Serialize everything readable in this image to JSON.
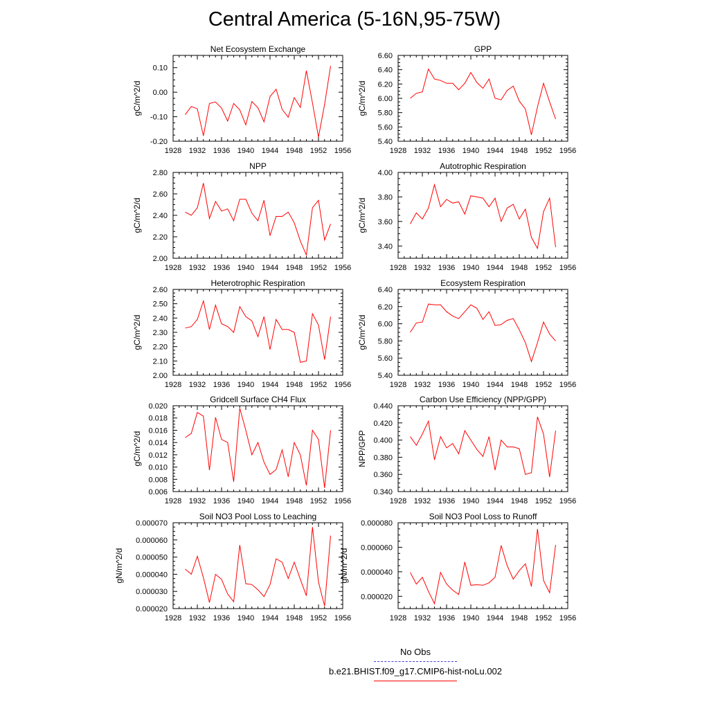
{
  "figure": {
    "title": "Central America (5-16N,95-75W)"
  },
  "legend": {
    "items": [
      {
        "label": "No Obs",
        "color": "#4040d0",
        "style": "dashed"
      },
      {
        "label": "b.e21.BHIST.f09_g17.CMIP6-hist-noLu.002",
        "color": "#ff0000",
        "style": "solid"
      }
    ]
  },
  "chart_data": [
    {
      "type": "line",
      "title": "Net Ecosystem Exchange",
      "ylabel": "gC/m^2/d",
      "xlim": [
        1928,
        1956
      ],
      "ylim": [
        -0.2,
        0.15
      ],
      "x_ticks": [
        "1928",
        "1932",
        "1936",
        "1940",
        "1944",
        "1948",
        "1952",
        "1956"
      ],
      "y_ticks": [
        "-0.20",
        "-0.10",
        "0.00",
        "0.10"
      ],
      "y_tick_values": [
        -0.2,
        -0.1,
        0.0,
        0.1
      ],
      "x": [
        1930,
        1931,
        1932,
        1933,
        1934,
        1935,
        1936,
        1937,
        1938,
        1939,
        1940,
        1941,
        1942,
        1943,
        1944,
        1945,
        1946,
        1947,
        1948,
        1949,
        1950,
        1951,
        1952,
        1953,
        1954
      ],
      "series": [
        {
          "values": [
            -0.092,
            -0.058,
            -0.068,
            -0.178,
            -0.046,
            -0.04,
            -0.065,
            -0.118,
            -0.046,
            -0.072,
            -0.133,
            -0.038,
            -0.063,
            -0.121,
            -0.018,
            0.012,
            -0.07,
            -0.102,
            -0.022,
            -0.062,
            0.088,
            -0.044,
            -0.183,
            -0.05,
            0.107
          ],
          "color": "#ff0000"
        }
      ]
    },
    {
      "type": "line",
      "title": "GPP",
      "ylabel": "gC/m^2/d",
      "xlim": [
        1928,
        1956
      ],
      "ylim": [
        5.4,
        6.6
      ],
      "x_ticks": [
        "1928",
        "1932",
        "1936",
        "1940",
        "1944",
        "1948",
        "1952",
        "1956"
      ],
      "y_ticks": [
        "5.40",
        "5.60",
        "5.80",
        "6.00",
        "6.20",
        "6.40",
        "6.60"
      ],
      "y_tick_values": [
        5.4,
        5.6,
        5.8,
        6.0,
        6.2,
        6.4,
        6.6
      ],
      "x": [
        1930,
        1931,
        1932,
        1933,
        1934,
        1935,
        1936,
        1937,
        1938,
        1939,
        1940,
        1941,
        1942,
        1943,
        1944,
        1945,
        1946,
        1947,
        1948,
        1949,
        1950,
        1951,
        1952,
        1953,
        1954
      ],
      "series": [
        {
          "values": [
            6.0,
            6.07,
            6.09,
            6.41,
            6.27,
            6.25,
            6.21,
            6.21,
            6.12,
            6.21,
            6.36,
            6.22,
            6.14,
            6.27,
            6.0,
            5.98,
            6.11,
            6.17,
            5.96,
            5.85,
            5.49,
            5.88,
            6.21,
            5.95,
            5.71
          ],
          "color": "#ff0000"
        }
      ]
    },
    {
      "type": "line",
      "title": "NPP",
      "ylabel": "gC/m^2/d",
      "xlim": [
        1928,
        1956
      ],
      "ylim": [
        2.0,
        2.8
      ],
      "x_ticks": [
        "1928",
        "1932",
        "1936",
        "1940",
        "1944",
        "1948",
        "1952",
        "1956"
      ],
      "y_ticks": [
        "2.00",
        "2.20",
        "2.40",
        "2.60",
        "2.80"
      ],
      "y_tick_values": [
        2.0,
        2.2,
        2.4,
        2.6,
        2.8
      ],
      "x": [
        1930,
        1931,
        1932,
        1933,
        1934,
        1935,
        1936,
        1937,
        1938,
        1939,
        1940,
        1941,
        1942,
        1943,
        1944,
        1945,
        1946,
        1947,
        1948,
        1949,
        1950,
        1951,
        1952,
        1953,
        1954
      ],
      "series": [
        {
          "values": [
            2.43,
            2.4,
            2.47,
            2.7,
            2.37,
            2.53,
            2.44,
            2.46,
            2.35,
            2.55,
            2.55,
            2.42,
            2.35,
            2.54,
            2.21,
            2.39,
            2.39,
            2.43,
            2.33,
            2.16,
            2.03,
            2.47,
            2.54,
            2.17,
            2.32
          ],
          "color": "#ff0000"
        }
      ]
    },
    {
      "type": "line",
      "title": "Autotrophic Respiration",
      "ylabel": "gC/m^2/d",
      "xlim": [
        1928,
        1956
      ],
      "ylim": [
        3.3,
        4.0
      ],
      "x_ticks": [
        "1928",
        "1932",
        "1936",
        "1940",
        "1944",
        "1948",
        "1952",
        "1956"
      ],
      "y_ticks": [
        "3.40",
        "3.60",
        "3.80",
        "4.00"
      ],
      "y_tick_values": [
        3.4,
        3.6,
        3.8,
        4.0
      ],
      "x": [
        1930,
        1931,
        1932,
        1933,
        1934,
        1935,
        1936,
        1937,
        1938,
        1939,
        1940,
        1941,
        1942,
        1943,
        1944,
        1945,
        1946,
        1947,
        1948,
        1949,
        1950,
        1951,
        1952,
        1953,
        1954
      ],
      "series": [
        {
          "values": [
            3.58,
            3.67,
            3.62,
            3.71,
            3.9,
            3.72,
            3.78,
            3.75,
            3.76,
            3.66,
            3.81,
            3.8,
            3.79,
            3.72,
            3.79,
            3.6,
            3.71,
            3.74,
            3.62,
            3.7,
            3.47,
            3.38,
            3.68,
            3.79,
            3.39
          ],
          "color": "#ff0000"
        }
      ]
    },
    {
      "type": "line",
      "title": "Heterotrophic Respiration",
      "ylabel": "gC/m^2/d",
      "xlim": [
        1928,
        1956
      ],
      "ylim": [
        2.0,
        2.6
      ],
      "x_ticks": [
        "1928",
        "1932",
        "1936",
        "1940",
        "1944",
        "1948",
        "1952",
        "1956"
      ],
      "y_ticks": [
        "2.00",
        "2.10",
        "2.20",
        "2.30",
        "2.40",
        "2.50",
        "2.60"
      ],
      "y_tick_values": [
        2.0,
        2.1,
        2.2,
        2.3,
        2.4,
        2.5,
        2.6
      ],
      "x": [
        1930,
        1931,
        1932,
        1933,
        1934,
        1935,
        1936,
        1937,
        1938,
        1939,
        1940,
        1941,
        1942,
        1943,
        1944,
        1945,
        1946,
        1947,
        1948,
        1949,
        1950,
        1951,
        1952,
        1953,
        1954
      ],
      "series": [
        {
          "values": [
            2.33,
            2.34,
            2.39,
            2.52,
            2.32,
            2.49,
            2.36,
            2.34,
            2.3,
            2.48,
            2.41,
            2.38,
            2.27,
            2.41,
            2.18,
            2.39,
            2.32,
            2.32,
            2.3,
            2.09,
            2.1,
            2.43,
            2.35,
            2.11,
            2.41
          ],
          "color": "#ff0000"
        }
      ]
    },
    {
      "type": "line",
      "title": "Ecosystem Respiration",
      "ylabel": "gC/m^2/d",
      "xlim": [
        1928,
        1956
      ],
      "ylim": [
        5.4,
        6.4
      ],
      "x_ticks": [
        "1928",
        "1932",
        "1936",
        "1940",
        "1944",
        "1948",
        "1952",
        "1956"
      ],
      "y_ticks": [
        "5.40",
        "5.60",
        "5.80",
        "6.00",
        "6.20",
        "6.40"
      ],
      "y_tick_values": [
        5.4,
        5.6,
        5.8,
        6.0,
        6.2,
        6.4
      ],
      "x": [
        1930,
        1931,
        1932,
        1933,
        1934,
        1935,
        1936,
        1937,
        1938,
        1939,
        1940,
        1941,
        1942,
        1943,
        1944,
        1945,
        1946,
        1947,
        1948,
        1949,
        1950,
        1951,
        1952,
        1953,
        1954
      ],
      "series": [
        {
          "values": [
            5.9,
            6.01,
            6.02,
            6.23,
            6.22,
            6.22,
            6.14,
            6.09,
            6.06,
            6.14,
            6.22,
            6.18,
            6.05,
            6.14,
            5.98,
            5.99,
            6.04,
            6.06,
            5.93,
            5.78,
            5.56,
            5.78,
            6.02,
            5.88,
            5.8
          ],
          "color": "#ff0000"
        }
      ]
    },
    {
      "type": "line",
      "title": "Gridcell Surface CH4 Flux",
      "ylabel": "gC/m^2/d",
      "xlim": [
        1928,
        1956
      ],
      "ylim": [
        0.006,
        0.02
      ],
      "x_ticks": [
        "1928",
        "1932",
        "1936",
        "1940",
        "1944",
        "1948",
        "1952",
        "1956"
      ],
      "y_ticks": [
        "0.006",
        "0.008",
        "0.010",
        "0.012",
        "0.014",
        "0.016",
        "0.018",
        "0.020"
      ],
      "y_tick_values": [
        0.006,
        0.008,
        0.01,
        0.012,
        0.014,
        0.016,
        0.018,
        0.02
      ],
      "x": [
        1930,
        1931,
        1932,
        1933,
        1934,
        1935,
        1936,
        1937,
        1938,
        1939,
        1940,
        1941,
        1942,
        1943,
        1944,
        1945,
        1946,
        1947,
        1948,
        1949,
        1950,
        1951,
        1952,
        1953,
        1954
      ],
      "series": [
        {
          "values": [
            0.0148,
            0.0155,
            0.0189,
            0.0183,
            0.0095,
            0.0181,
            0.0145,
            0.014,
            0.0076,
            0.0196,
            0.016,
            0.012,
            0.014,
            0.0108,
            0.0088,
            0.0096,
            0.0128,
            0.0084,
            0.014,
            0.012,
            0.007,
            0.016,
            0.0145,
            0.0066,
            0.016
          ],
          "color": "#ff0000"
        }
      ]
    },
    {
      "type": "line",
      "title": "Carbon Use Efficiency (NPP/GPP)",
      "ylabel": "NPP/GPP",
      "xlim": [
        1928,
        1956
      ],
      "ylim": [
        0.34,
        0.44
      ],
      "x_ticks": [
        "1928",
        "1932",
        "1936",
        "1940",
        "1944",
        "1948",
        "1952",
        "1956"
      ],
      "y_ticks": [
        "0.340",
        "0.360",
        "0.380",
        "0.400",
        "0.420",
        "0.440"
      ],
      "y_tick_values": [
        0.34,
        0.36,
        0.38,
        0.4,
        0.42,
        0.44
      ],
      "x": [
        1930,
        1931,
        1932,
        1933,
        1934,
        1935,
        1936,
        1937,
        1938,
        1939,
        1940,
        1941,
        1942,
        1943,
        1944,
        1945,
        1946,
        1947,
        1948,
        1949,
        1950,
        1951,
        1952,
        1953,
        1954
      ],
      "series": [
        {
          "values": [
            0.404,
            0.394,
            0.407,
            0.422,
            0.377,
            0.404,
            0.391,
            0.396,
            0.384,
            0.411,
            0.4,
            0.389,
            0.381,
            0.404,
            0.365,
            0.4,
            0.392,
            0.392,
            0.39,
            0.36,
            0.362,
            0.427,
            0.407,
            0.357,
            0.411
          ],
          "color": "#ff0000"
        }
      ]
    },
    {
      "type": "line",
      "title": "Soil NO3 Pool Loss to Leaching",
      "ylabel": "gN/m^2/d",
      "xlim": [
        1928,
        1956
      ],
      "ylim": [
        2e-05,
        7e-05
      ],
      "x_ticks": [
        "1928",
        "1932",
        "1936",
        "1940",
        "1944",
        "1948",
        "1952",
        "1956"
      ],
      "y_ticks": [
        "0.000020",
        "0.000030",
        "0.000040",
        "0.000050",
        "0.000060",
        "0.000070"
      ],
      "y_tick_values": [
        2e-05,
        3e-05,
        4e-05,
        5e-05,
        6e-05,
        7e-05
      ],
      "x": [
        1930,
        1931,
        1932,
        1933,
        1934,
        1935,
        1936,
        1937,
        1938,
        1939,
        1940,
        1941,
        1942,
        1943,
        1944,
        1945,
        1946,
        1947,
        1948,
        1949,
        1950,
        1951,
        1952,
        1953,
        1954
      ],
      "series": [
        {
          "values": [
            4.3e-05,
            4e-05,
            5.05e-05,
            3.8e-05,
            2.35e-05,
            4e-05,
            3.7e-05,
            2.85e-05,
            2.4e-05,
            5.7e-05,
            3.45e-05,
            3.4e-05,
            3.1e-05,
            2.7e-05,
            3.4e-05,
            4.9e-05,
            4.7e-05,
            3.75e-05,
            4.7e-05,
            3.7e-05,
            2.75e-05,
            6.75e-05,
            3.55e-05,
            2.15e-05,
            6.25e-05
          ],
          "color": "#ff0000"
        }
      ]
    },
    {
      "type": "line",
      "title": "Soil NO3 Pool Loss to Runoff",
      "ylabel": "gN/m^2/d",
      "xlim": [
        1928,
        1956
      ],
      "ylim": [
        1e-05,
        8e-05
      ],
      "x_ticks": [
        "1928",
        "1932",
        "1936",
        "1940",
        "1944",
        "1948",
        "1952",
        "1956"
      ],
      "y_ticks": [
        "0.000020",
        "0.000040",
        "0.000060",
        "0.000080"
      ],
      "y_tick_values": [
        2e-05,
        4e-05,
        6e-05,
        8e-05
      ],
      "x": [
        1930,
        1931,
        1932,
        1933,
        1934,
        1935,
        1936,
        1937,
        1938,
        1939,
        1940,
        1941,
        1942,
        1943,
        1944,
        1945,
        1946,
        1947,
        1948,
        1949,
        1950,
        1951,
        1952,
        1953,
        1954
      ],
      "series": [
        {
          "values": [
            3.95e-05,
            3e-05,
            3.55e-05,
            2.4e-05,
            1.4e-05,
            3.95e-05,
            3e-05,
            2.5e-05,
            2.15e-05,
            4.8e-05,
            2.9e-05,
            2.95e-05,
            2.9e-05,
            3.1e-05,
            3.55e-05,
            6.15e-05,
            4.5e-05,
            3.4e-05,
            4.1e-05,
            4.65e-05,
            2.8e-05,
            7.5e-05,
            3.3e-05,
            2.3e-05,
            6.2e-05
          ],
          "color": "#ff0000"
        }
      ]
    }
  ]
}
